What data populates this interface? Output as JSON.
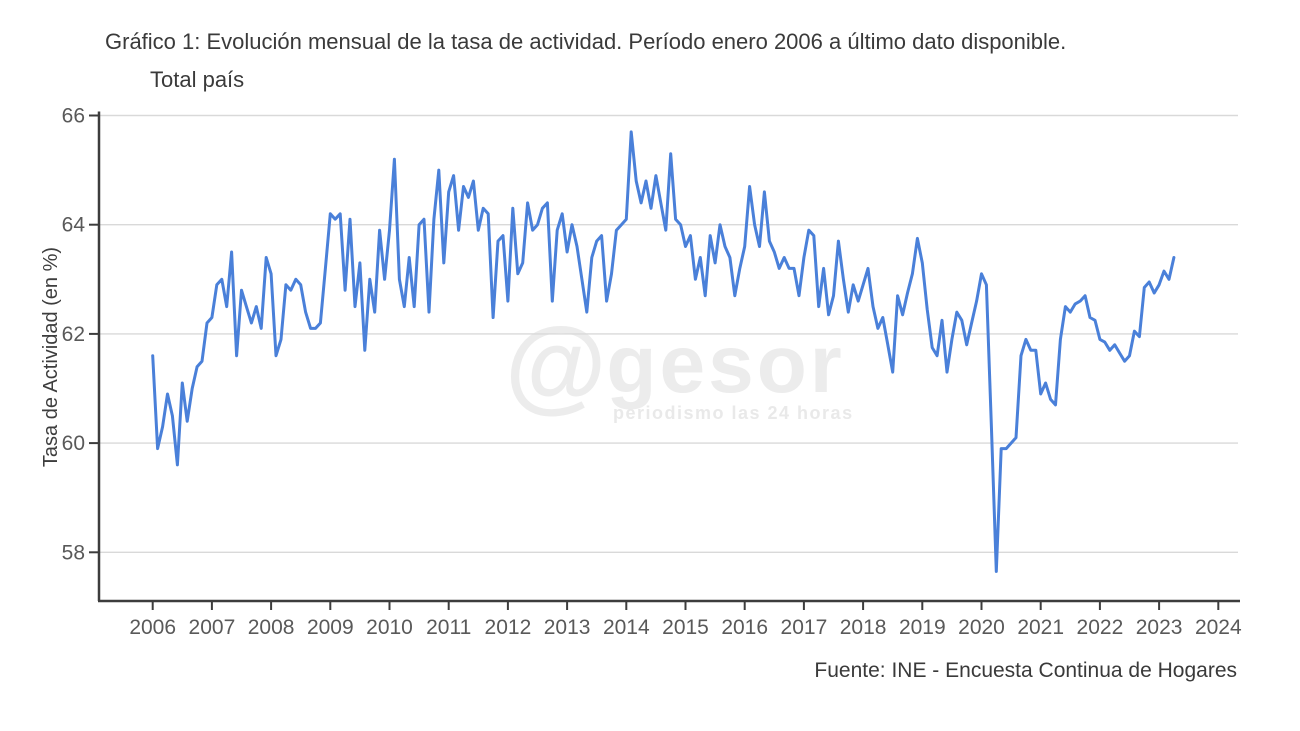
{
  "header": {
    "title_line1": "Gráfico 1: Evolución mensual de la tasa de actividad. Período enero 2006 a último dato disponible.",
    "title_line2": "Total país"
  },
  "chart_data": {
    "type": "line",
    "title": "Gráfico 1: Evolución mensual de la tasa de actividad. Período enero 2006 a último dato disponible. Total país",
    "xlabel": "",
    "ylabel": "Tasa de Actividad (en %)",
    "ylim": [
      57.0,
      66.2
    ],
    "yticks": [
      58,
      60,
      62,
      64,
      66
    ],
    "xticks": [
      2006,
      2007,
      2008,
      2009,
      2010,
      2011,
      2012,
      2013,
      2014,
      2015,
      2016,
      2017,
      2018,
      2019,
      2020,
      2021,
      2022,
      2023,
      2024
    ],
    "x_start_year": 2006,
    "x_start": "2006-01",
    "x_frequency": "monthly",
    "grid": "horizontal",
    "legend": "none",
    "line_color": "#4a80d9",
    "values": [
      61.6,
      59.9,
      60.3,
      60.9,
      60.5,
      59.6,
      61.1,
      60.4,
      61.0,
      61.4,
      61.5,
      62.2,
      62.3,
      62.9,
      63.0,
      62.5,
      63.5,
      61.6,
      62.8,
      62.5,
      62.2,
      62.5,
      62.1,
      63.4,
      63.1,
      61.6,
      61.9,
      62.9,
      62.8,
      63.0,
      62.9,
      62.4,
      62.1,
      62.1,
      62.2,
      63.2,
      64.2,
      64.1,
      64.2,
      62.8,
      64.1,
      62.5,
      63.3,
      61.7,
      63.0,
      62.4,
      63.9,
      63.0,
      63.9,
      65.2,
      63.0,
      62.5,
      63.4,
      62.5,
      64.0,
      64.1,
      62.4,
      64.1,
      65.0,
      63.3,
      64.6,
      64.9,
      63.9,
      64.7,
      64.5,
      64.8,
      63.9,
      64.3,
      64.2,
      62.3,
      63.7,
      63.8,
      62.6,
      64.3,
      63.1,
      63.3,
      64.4,
      63.9,
      64.0,
      64.3,
      64.4,
      62.6,
      63.9,
      64.2,
      63.5,
      64.0,
      63.6,
      63.0,
      62.4,
      63.4,
      63.7,
      63.8,
      62.6,
      63.1,
      63.9,
      64.0,
      64.1,
      65.7,
      64.8,
      64.4,
      64.8,
      64.3,
      64.9,
      64.4,
      63.9,
      65.3,
      64.1,
      64.0,
      63.6,
      63.8,
      63.0,
      63.4,
      62.7,
      63.8,
      63.3,
      64.0,
      63.6,
      63.4,
      62.7,
      63.2,
      63.6,
      64.7,
      64.0,
      63.6,
      64.6,
      63.7,
      63.5,
      63.2,
      63.4,
      63.2,
      63.2,
      62.7,
      63.4,
      63.9,
      63.8,
      62.5,
      63.2,
      62.35,
      62.7,
      63.7,
      63.0,
      62.4,
      62.9,
      62.6,
      62.9,
      63.2,
      62.5,
      62.1,
      62.3,
      61.8,
      61.3,
      62.7,
      62.35,
      62.75,
      63.1,
      63.75,
      63.3,
      62.45,
      61.75,
      61.6,
      62.25,
      61.3,
      61.9,
      62.4,
      62.25,
      61.8,
      62.2,
      62.6,
      63.1,
      62.9,
      60.3,
      57.65,
      59.9,
      59.9,
      60.0,
      60.1,
      61.6,
      61.9,
      61.7,
      61.7,
      60.9,
      61.1,
      60.8,
      60.7,
      61.9,
      62.5,
      62.4,
      62.55,
      62.6,
      62.7,
      62.3,
      62.25,
      61.9,
      61.85,
      61.7,
      61.8,
      61.65,
      61.5,
      61.6,
      62.05,
      61.95,
      62.85,
      62.95,
      62.75,
      62.9,
      63.15,
      63.0,
      63.4
    ]
  },
  "watermark": {
    "at": "@",
    "text": "gesor",
    "subtext": "periodismo las 24 horas"
  },
  "footer": {
    "source": "Fuente: INE - Encuesta Continua de Hogares"
  },
  "colors": {
    "line": "#4a80d9",
    "grid": "#d9d9d9",
    "axis": "#3d3d3d",
    "tick_label": "#595959",
    "title_text": "#3a3a3a",
    "watermark": "#ececec"
  }
}
